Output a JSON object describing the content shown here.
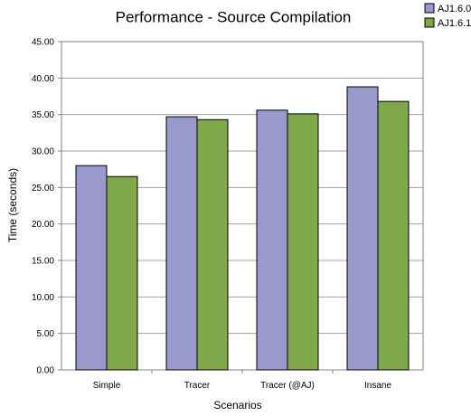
{
  "chart_data": {
    "type": "bar",
    "title": "Performance - Source Compilation",
    "xlabel": "Scenarios",
    "ylabel": "Time (seconds)",
    "categories": [
      "Simple",
      "Tracer",
      "Tracer (@AJ)",
      "Insane"
    ],
    "series": [
      {
        "name": "AJ1.6.0",
        "color": "#9999cc",
        "values": [
          28.0,
          34.7,
          35.6,
          38.8
        ]
      },
      {
        "name": "AJ1.6.1",
        "color": "#7fa84a",
        "values": [
          26.5,
          34.3,
          35.1,
          36.8
        ]
      }
    ],
    "ylim": [
      0,
      45
    ],
    "yticks": [
      "0.00",
      "5.00",
      "10.00",
      "15.00",
      "20.00",
      "25.00",
      "30.00",
      "35.00",
      "40.00",
      "45.00"
    ],
    "grid": true,
    "legend_position": "top-right"
  }
}
